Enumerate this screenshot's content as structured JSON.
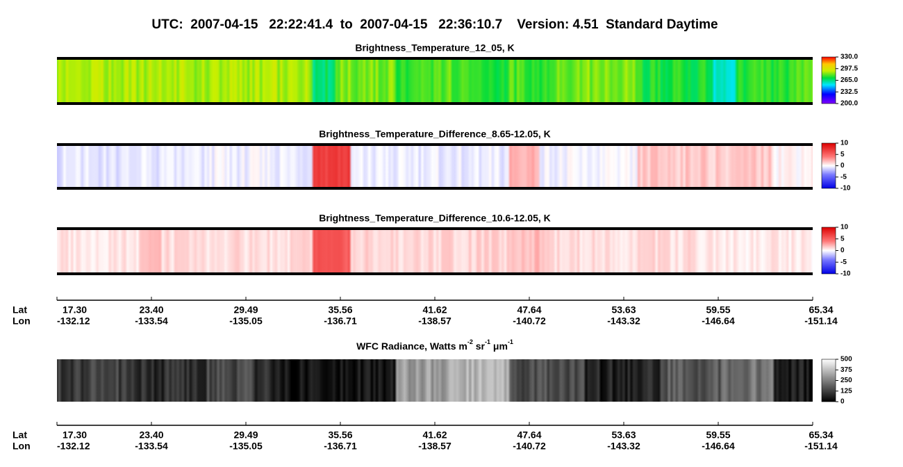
{
  "title": "UTC:  2007-04-15   22:22:41.4  to  2007-04-15   22:36:10.7    Version: 4.51  Standard Daytime",
  "panels": [
    {
      "title": "Brightness_Temperature_12_05, K",
      "colormap": "rainbow",
      "clim": [
        200,
        330
      ],
      "ticks": [
        {
          "value": 330,
          "label": "330.0"
        },
        297.5,
        {
          "value": 265,
          "label": "265.0"
        },
        232.5,
        {
          "value": 200,
          "label": "200.0"
        }
      ]
    },
    {
      "title": "Brightness_Temperature_Difference_8.65-12.05, K",
      "colormap": "bwr",
      "clim": [
        -10,
        10
      ],
      "ticks": [
        10,
        5,
        0,
        -5,
        -10
      ]
    },
    {
      "title": "Brightness_Temperature_Difference_10.6-12.05, K",
      "colormap": "bwr",
      "clim": [
        -10,
        10
      ],
      "ticks": [
        10,
        5,
        0,
        -5,
        -10
      ]
    }
  ],
  "wfc": {
    "title_parts": [
      {
        "text": "WFC Radiance, Watts m"
      },
      {
        "sup": "-2"
      },
      {
        "text": " sr"
      },
      {
        "sup": "-1"
      },
      {
        "text": " μm"
      },
      {
        "sup": "-1"
      }
    ],
    "colormap": "gray",
    "clim": [
      0,
      500
    ],
    "ticks": [
      500,
      375,
      250,
      125,
      0
    ]
  },
  "axis": {
    "lat_label": "Lat",
    "lon_label": "Lon",
    "lat": [
      "17.30",
      "23.40",
      "29.49",
      "35.56",
      "41.62",
      "47.64",
      "53.63",
      "59.55",
      "65.34"
    ],
    "lon": [
      "-132.12",
      "-133.54",
      "-135.05",
      "-136.71",
      "-138.57",
      "-140.72",
      "-143.32",
      "-146.64",
      "-151.14"
    ]
  }
}
